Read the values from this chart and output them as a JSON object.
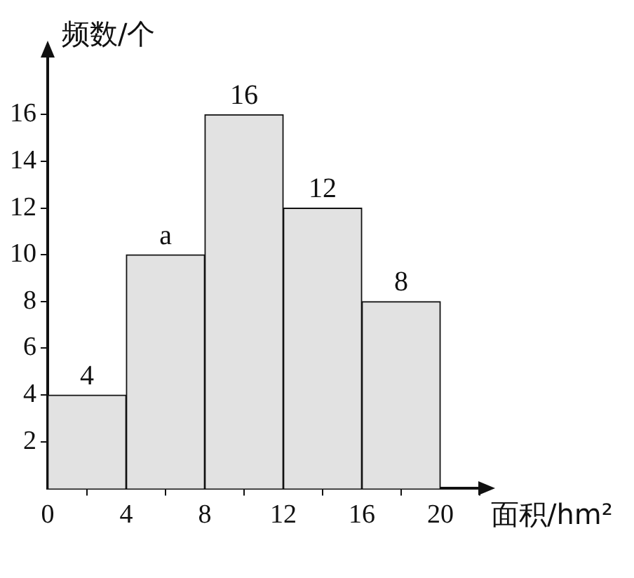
{
  "chart_data": {
    "type": "histogram",
    "xlabel": "面积/hm²",
    "ylabel": "频数/个",
    "bins": [
      0,
      4,
      8,
      12,
      16,
      20
    ],
    "values": [
      4,
      10,
      16,
      12,
      8
    ],
    "value_labels": [
      "4",
      "a",
      "16",
      "12",
      "8"
    ],
    "color": "#e2e2e2",
    "xlim": [
      0,
      22
    ],
    "ylim": [
      0,
      18.5
    ],
    "xticks": [
      0,
      4,
      8,
      12,
      16,
      20
    ],
    "yticks": [
      2,
      4,
      6,
      8,
      10,
      12,
      14,
      16
    ],
    "grid": false,
    "legend": false
  }
}
